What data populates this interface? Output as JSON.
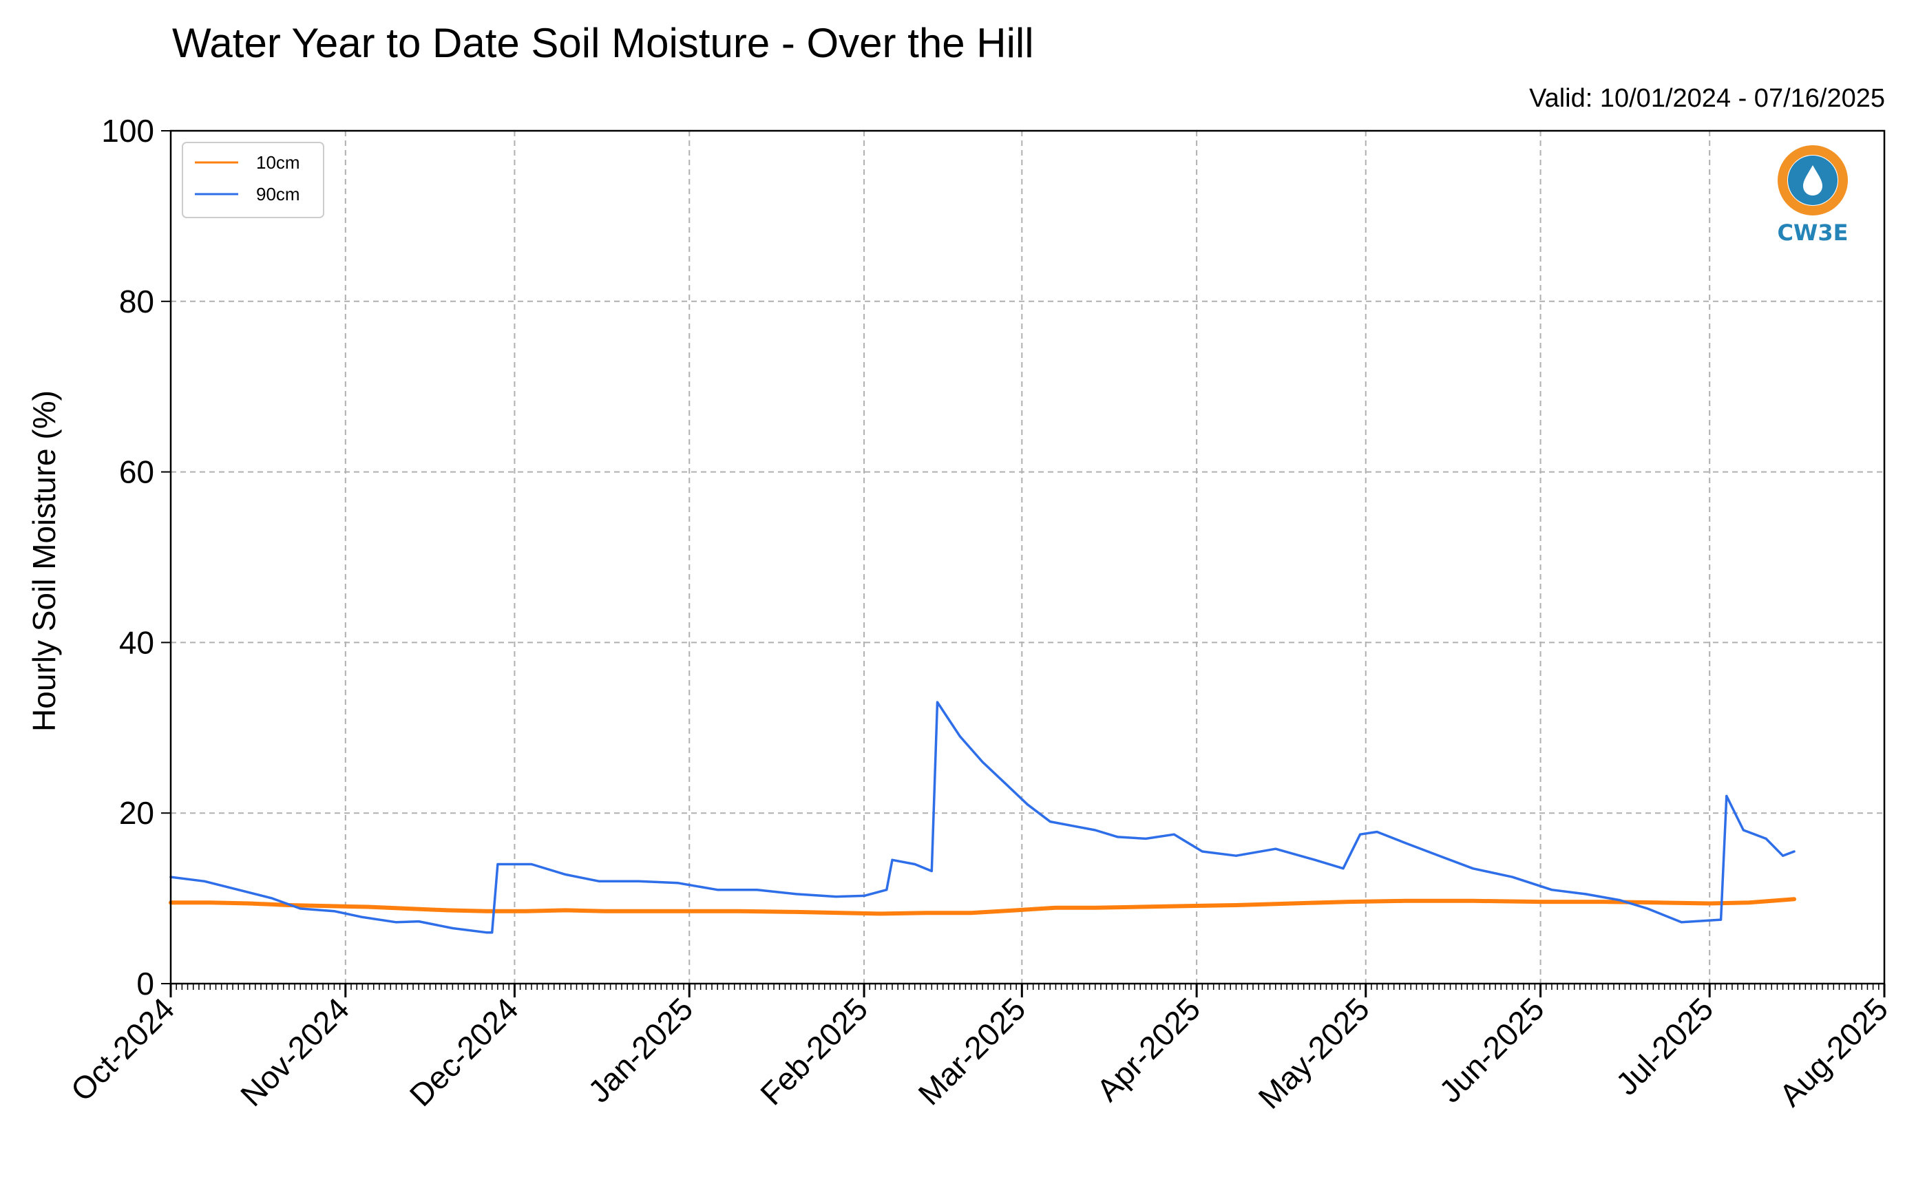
{
  "chart_data": {
    "type": "line",
    "title": "Water Year to Date Soil Moisture - Over the Hill",
    "subtitle": "Valid: 10/01/2024 - 07/16/2025",
    "xlabel": "",
    "ylabel": "Hourly Soil Moisture (%)",
    "ylim": [
      0,
      100
    ],
    "xlim": [
      "2024-10-01",
      "2025-08-01"
    ],
    "grid": true,
    "legend_position": "top-left",
    "x_ticks": [
      "Oct-2024",
      "Nov-2024",
      "Dec-2024",
      "Jan-2025",
      "Feb-2025",
      "Mar-2025",
      "Apr-2025",
      "May-2025",
      "Jun-2025",
      "Jul-2025",
      "Aug-2025"
    ],
    "y_ticks": [
      0,
      20,
      40,
      60,
      80,
      100
    ],
    "series": [
      {
        "name": "10cm",
        "color": "#ff7f0e",
        "points": [
          [
            "2024-10-01",
            9.5
          ],
          [
            "2024-10-08",
            9.5
          ],
          [
            "2024-10-15",
            9.4
          ],
          [
            "2024-10-22",
            9.2
          ],
          [
            "2024-10-29",
            9.1
          ],
          [
            "2024-11-05",
            9.0
          ],
          [
            "2024-11-12",
            8.8
          ],
          [
            "2024-11-19",
            8.6
          ],
          [
            "2024-11-26",
            8.5
          ],
          [
            "2024-12-03",
            8.5
          ],
          [
            "2024-12-10",
            8.6
          ],
          [
            "2024-12-17",
            8.5
          ],
          [
            "2024-12-24",
            8.5
          ],
          [
            "2025-01-01",
            8.5
          ],
          [
            "2025-01-10",
            8.5
          ],
          [
            "2025-01-20",
            8.4
          ],
          [
            "2025-01-28",
            8.3
          ],
          [
            "2025-02-04",
            8.2
          ],
          [
            "2025-02-12",
            8.3
          ],
          [
            "2025-02-20",
            8.3
          ],
          [
            "2025-02-28",
            8.6
          ],
          [
            "2025-03-07",
            8.9
          ],
          [
            "2025-03-14",
            8.9
          ],
          [
            "2025-03-22",
            9.0
          ],
          [
            "2025-03-30",
            9.1
          ],
          [
            "2025-04-08",
            9.2
          ],
          [
            "2025-04-18",
            9.4
          ],
          [
            "2025-04-28",
            9.6
          ],
          [
            "2025-05-08",
            9.7
          ],
          [
            "2025-05-20",
            9.7
          ],
          [
            "2025-06-01",
            9.6
          ],
          [
            "2025-06-12",
            9.6
          ],
          [
            "2025-06-22",
            9.5
          ],
          [
            "2025-07-01",
            9.4
          ],
          [
            "2025-07-08",
            9.5
          ],
          [
            "2025-07-16",
            9.9
          ]
        ]
      },
      {
        "name": "90cm",
        "color": "#2e6ee8",
        "points": [
          [
            "2024-10-01",
            12.5
          ],
          [
            "2024-10-07",
            12.0
          ],
          [
            "2024-10-13",
            11.0
          ],
          [
            "2024-10-19",
            10.0
          ],
          [
            "2024-10-24",
            8.8
          ],
          [
            "2024-10-30",
            8.5
          ],
          [
            "2024-11-04",
            7.8
          ],
          [
            "2024-11-10",
            7.2
          ],
          [
            "2024-11-14",
            7.3
          ],
          [
            "2024-11-20",
            6.5
          ],
          [
            "2024-11-26",
            6.0
          ],
          [
            "2024-11-27",
            6.0
          ],
          [
            "2024-11-28",
            14.0
          ],
          [
            "2024-12-04",
            14.0
          ],
          [
            "2024-12-10",
            12.8
          ],
          [
            "2024-12-16",
            12.0
          ],
          [
            "2024-12-23",
            12.0
          ],
          [
            "2024-12-30",
            11.8
          ],
          [
            "2025-01-06",
            11.0
          ],
          [
            "2025-01-13",
            11.0
          ],
          [
            "2025-01-20",
            10.5
          ],
          [
            "2025-01-27",
            10.2
          ],
          [
            "2025-02-01",
            10.3
          ],
          [
            "2025-02-05",
            11.0
          ],
          [
            "2025-02-06",
            14.5
          ],
          [
            "2025-02-10",
            14.0
          ],
          [
            "2025-02-13",
            13.2
          ],
          [
            "2025-02-14",
            33.0
          ],
          [
            "2025-02-18",
            29.0
          ],
          [
            "2025-02-22",
            26.0
          ],
          [
            "2025-02-26",
            23.5
          ],
          [
            "2025-03-02",
            21.0
          ],
          [
            "2025-03-06",
            19.0
          ],
          [
            "2025-03-10",
            18.5
          ],
          [
            "2025-03-14",
            18.0
          ],
          [
            "2025-03-18",
            17.2
          ],
          [
            "2025-03-23",
            17.0
          ],
          [
            "2025-03-28",
            17.5
          ],
          [
            "2025-04-02",
            15.5
          ],
          [
            "2025-04-08",
            15.0
          ],
          [
            "2025-04-15",
            15.8
          ],
          [
            "2025-04-22",
            14.5
          ],
          [
            "2025-04-27",
            13.5
          ],
          [
            "2025-04-30",
            17.5
          ],
          [
            "2025-05-03",
            17.8
          ],
          [
            "2025-05-08",
            16.5
          ],
          [
            "2025-05-14",
            15.0
          ],
          [
            "2025-05-20",
            13.5
          ],
          [
            "2025-05-27",
            12.5
          ],
          [
            "2025-06-03",
            11.0
          ],
          [
            "2025-06-09",
            10.5
          ],
          [
            "2025-06-15",
            9.8
          ],
          [
            "2025-06-20",
            8.8
          ],
          [
            "2025-06-26",
            7.2
          ],
          [
            "2025-07-03",
            7.5
          ],
          [
            "2025-07-04",
            22.0
          ],
          [
            "2025-07-07",
            18.0
          ],
          [
            "2025-07-11",
            17.0
          ],
          [
            "2025-07-14",
            15.0
          ],
          [
            "2025-07-16",
            15.5
          ]
        ]
      }
    ]
  },
  "logo": {
    "text": "CW3E",
    "orange": "#f39224",
    "blue": "#2484b8"
  }
}
